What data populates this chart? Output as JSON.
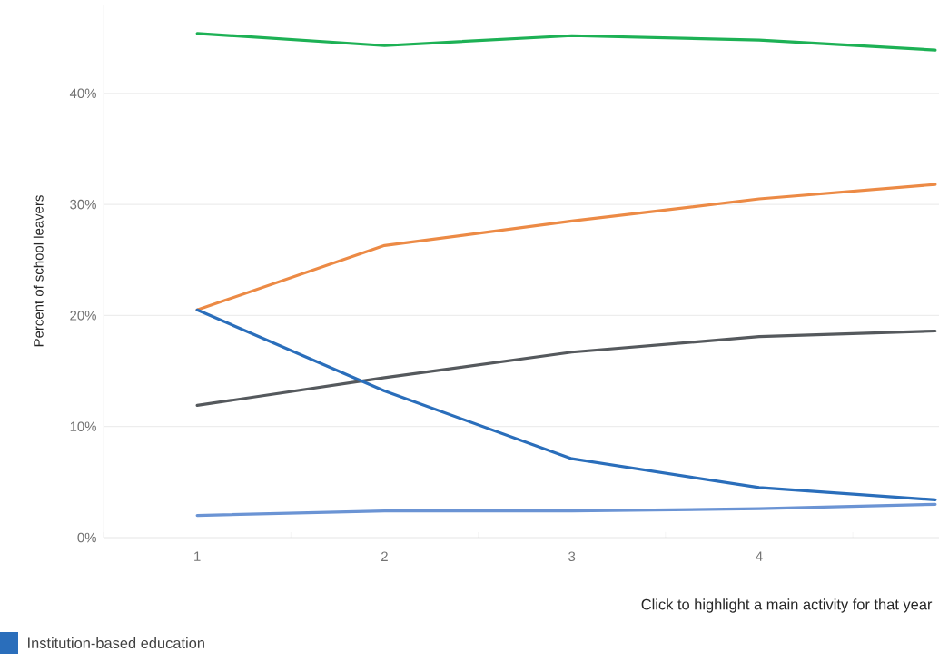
{
  "chart_data": {
    "type": "line",
    "xlabel": "Click to highlight a main activity for that year",
    "ylabel": "Percent of school leavers",
    "x": [
      1,
      2,
      3,
      4,
      4.94
    ],
    "xlim": [
      0.5,
      4.96
    ],
    "ylim": [
      0,
      48
    ],
    "xticks": [
      {
        "value": 0.5,
        "label": null
      },
      1,
      {
        "value": 1.5,
        "label": null
      },
      2,
      {
        "value": 2.5,
        "label": null
      },
      3,
      {
        "value": 3.5,
        "label": null
      },
      4,
      {
        "value": 4.5,
        "label": null
      }
    ],
    "yticks": [
      {
        "value": 0,
        "label": "0%"
      },
      {
        "value": 10,
        "label": "10%"
      },
      {
        "value": 20,
        "label": "20%"
      },
      {
        "value": 30,
        "label": "30%"
      },
      {
        "value": 40,
        "label": "40%"
      }
    ],
    "grid": "y",
    "legend": "bottom left",
    "marker": "none",
    "line_style": "solid",
    "series": [
      {
        "color": "#1db155",
        "values": [
          45.4,
          44.3,
          45.2,
          44.8,
          43.9
        ]
      },
      {
        "color": "#ec8a45",
        "values": [
          20.5,
          26.3,
          28.5,
          30.5,
          31.8
        ]
      },
      {
        "color": "#55595d",
        "values": [
          11.9,
          14.4,
          16.7,
          18.1,
          18.6
        ]
      },
      {
        "name": "Institution-based education",
        "color": "#2a6ebb",
        "values": [
          20.5,
          13.2,
          7.1,
          4.5,
          3.4
        ]
      },
      {
        "color": "#6b94d4",
        "values": [
          2.0,
          2.4,
          2.4,
          2.6,
          3.0
        ]
      }
    ]
  }
}
